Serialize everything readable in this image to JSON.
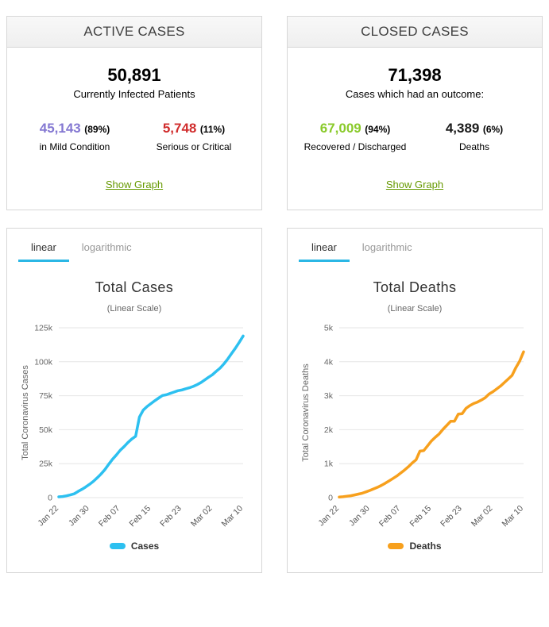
{
  "colors": {
    "link": "#669900",
    "tab_active_underline": "#2bb7e5",
    "grid_line": "#e6e6e6"
  },
  "tabs": [
    "linear",
    "logarithmic"
  ],
  "panels": {
    "active": {
      "title": "ACTIVE CASES",
      "total": "50,891",
      "subtitle": "Currently Infected Patients",
      "mild": {
        "value": "45,143",
        "pct": "(89%)",
        "label": "in Mild Condition",
        "color": "#8478d2"
      },
      "serious": {
        "value": "5,748",
        "pct": "(11%)",
        "label": "Serious or Critical",
        "color": "#d02c2c"
      },
      "link": "Show Graph"
    },
    "closed": {
      "title": "CLOSED CASES",
      "total": "71,398",
      "subtitle": "Cases which had an outcome:",
      "recovered": {
        "value": "67,009",
        "pct": "(94%)",
        "label": "Recovered / Discharged",
        "color": "#8aca2b"
      },
      "deaths": {
        "value": "4,389",
        "pct": "(6%)",
        "label": "Deaths",
        "color": "#1a1a1a"
      },
      "link": "Show Graph"
    }
  },
  "chart_data": [
    {
      "type": "line",
      "title": "Total Cases",
      "subtitle": "(Linear Scale)",
      "ylabel": "Total Coronavirus Cases",
      "legend": "Cases",
      "color": "#2dc0f0",
      "ylim": [
        0,
        125000
      ],
      "yticks": [
        {
          "v": 0,
          "label": "0"
        },
        {
          "v": 25000,
          "label": "25k"
        },
        {
          "v": 50000,
          "label": "50k"
        },
        {
          "v": 75000,
          "label": "75k"
        },
        {
          "v": 100000,
          "label": "100k"
        },
        {
          "v": 125000,
          "label": "125k"
        }
      ],
      "x": [
        "Jan 22",
        "Jan 23",
        "Jan 24",
        "Jan 25",
        "Jan 26",
        "Jan 27",
        "Jan 28",
        "Jan 29",
        "Jan 30",
        "Jan 31",
        "Feb 01",
        "Feb 02",
        "Feb 03",
        "Feb 04",
        "Feb 05",
        "Feb 06",
        "Feb 07",
        "Feb 08",
        "Feb 09",
        "Feb 10",
        "Feb 11",
        "Feb 12",
        "Feb 13",
        "Feb 14",
        "Feb 15",
        "Feb 16",
        "Feb 17",
        "Feb 18",
        "Feb 19",
        "Feb 20",
        "Feb 21",
        "Feb 22",
        "Feb 23",
        "Feb 24",
        "Feb 25",
        "Feb 26",
        "Feb 27",
        "Feb 28",
        "Feb 29",
        "Mar 01",
        "Mar 02",
        "Mar 03",
        "Mar 04",
        "Mar 05",
        "Mar 06",
        "Mar 07",
        "Mar 08",
        "Mar 09",
        "Mar 10"
      ],
      "xtick_idx": [
        0,
        8,
        16,
        24,
        32,
        40,
        48
      ],
      "values": [
        580,
        845,
        1317,
        2015,
        2800,
        4581,
        6058,
        7813,
        9823,
        11950,
        14553,
        17391,
        20630,
        24545,
        28266,
        31439,
        34876,
        37552,
        40553,
        43099,
        45134,
        59287,
        64438,
        67100,
        69197,
        71329,
        73332,
        75184,
        75700,
        76677,
        77673,
        78651,
        79205,
        80087,
        80828,
        81820,
        83112,
        84615,
        86604,
        88585,
        90443,
        93016,
        95314,
        98425,
        102050,
        106099,
        109991,
        114381,
        118948
      ]
    },
    {
      "type": "line",
      "title": "Total Deaths",
      "subtitle": "(Linear Scale)",
      "ylabel": "Total Coronavirus Deaths",
      "legend": "Deaths",
      "color": "#f7a01d",
      "ylim": [
        0,
        5000
      ],
      "yticks": [
        {
          "v": 0,
          "label": "0"
        },
        {
          "v": 1000,
          "label": "1k"
        },
        {
          "v": 2000,
          "label": "2k"
        },
        {
          "v": 3000,
          "label": "3k"
        },
        {
          "v": 4000,
          "label": "4k"
        },
        {
          "v": 5000,
          "label": "5k"
        }
      ],
      "x": [
        "Jan 22",
        "Jan 23",
        "Jan 24",
        "Jan 25",
        "Jan 26",
        "Jan 27",
        "Jan 28",
        "Jan 29",
        "Jan 30",
        "Jan 31",
        "Feb 01",
        "Feb 02",
        "Feb 03",
        "Feb 04",
        "Feb 05",
        "Feb 06",
        "Feb 07",
        "Feb 08",
        "Feb 09",
        "Feb 10",
        "Feb 11",
        "Feb 12",
        "Feb 13",
        "Feb 14",
        "Feb 15",
        "Feb 16",
        "Feb 17",
        "Feb 18",
        "Feb 19",
        "Feb 20",
        "Feb 21",
        "Feb 22",
        "Feb 23",
        "Feb 24",
        "Feb 25",
        "Feb 26",
        "Feb 27",
        "Feb 28",
        "Feb 29",
        "Mar 01",
        "Mar 02",
        "Mar 03",
        "Mar 04",
        "Mar 05",
        "Mar 06",
        "Mar 07",
        "Mar 08",
        "Mar 09",
        "Mar 10"
      ],
      "xtick_idx": [
        0,
        8,
        16,
        24,
        32,
        40,
        48
      ],
      "values": [
        17,
        25,
        41,
        56,
        80,
        106,
        132,
        170,
        213,
        259,
        305,
        362,
        426,
        492,
        565,
        638,
        724,
        813,
        910,
        1018,
        1115,
        1369,
        1383,
        1526,
        1669,
        1775,
        1873,
        2009,
        2126,
        2247,
        2251,
        2458,
        2469,
        2629,
        2708,
        2770,
        2814,
        2872,
        2941,
        3050,
        3117,
        3202,
        3285,
        3387,
        3494,
        3599,
        3828,
        4026,
        4292
      ]
    }
  ]
}
